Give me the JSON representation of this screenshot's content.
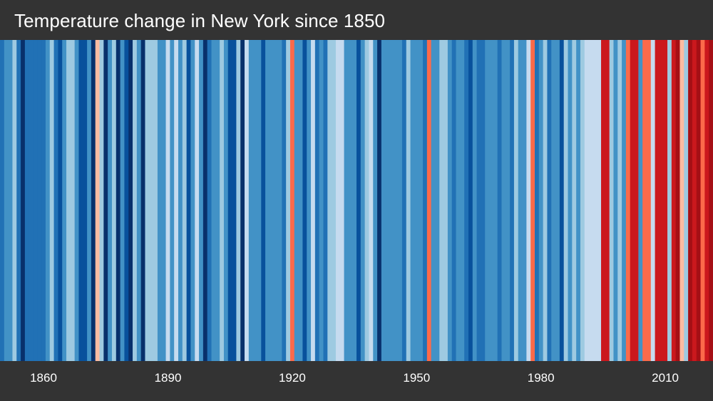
{
  "chart_data": {
    "type": "heatmap",
    "title": "Temperature change in New York since 1850",
    "xlabel": "",
    "ylabel": "",
    "x_range": [
      1850,
      2021
    ],
    "x_tick_labels": [
      "1860",
      "1890",
      "1920",
      "1950",
      "1980",
      "2010"
    ],
    "x_tick_values": [
      1860,
      1890,
      1920,
      1950,
      1980,
      2010
    ],
    "years": [
      1850,
      1851,
      1852,
      1853,
      1854,
      1855,
      1856,
      1857,
      1858,
      1859,
      1860,
      1861,
      1862,
      1863,
      1864,
      1865,
      1866,
      1867,
      1868,
      1869,
      1870,
      1871,
      1872,
      1873,
      1874,
      1875,
      1876,
      1877,
      1878,
      1879,
      1880,
      1881,
      1882,
      1883,
      1884,
      1885,
      1886,
      1887,
      1888,
      1889,
      1890,
      1891,
      1892,
      1893,
      1894,
      1895,
      1896,
      1897,
      1898,
      1899,
      1900,
      1901,
      1902,
      1903,
      1904,
      1905,
      1906,
      1907,
      1908,
      1909,
      1910,
      1911,
      1912,
      1913,
      1914,
      1915,
      1916,
      1917,
      1918,
      1919,
      1920,
      1921,
      1922,
      1923,
      1924,
      1925,
      1926,
      1927,
      1928,
      1929,
      1930,
      1931,
      1932,
      1933,
      1934,
      1935,
      1936,
      1937,
      1938,
      1939,
      1940,
      1941,
      1942,
      1943,
      1944,
      1945,
      1946,
      1947,
      1948,
      1949,
      1950,
      1951,
      1952,
      1953,
      1954,
      1955,
      1956,
      1957,
      1958,
      1959,
      1960,
      1961,
      1962,
      1963,
      1964,
      1965,
      1966,
      1967,
      1968,
      1969,
      1970,
      1971,
      1972,
      1973,
      1974,
      1975,
      1976,
      1977,
      1978,
      1979,
      1980,
      1981,
      1982,
      1983,
      1984,
      1985,
      1986,
      1987,
      1988,
      1989,
      1990,
      1991,
      1992,
      1993,
      1994,
      1995,
      1996,
      1997,
      1998,
      1999,
      2000,
      2001,
      2002,
      2003,
      2004,
      2005,
      2006,
      2007,
      2008,
      2009,
      2010,
      2011,
      2012,
      2013,
      2014,
      2015,
      2016,
      2017,
      2018,
      2019,
      2020,
      2021
    ],
    "color_levels": [
      -2,
      -1,
      -1,
      0,
      -2,
      -4,
      -2,
      -2,
      -2,
      -2,
      -2,
      -1,
      0,
      -2,
      -3,
      -1,
      0,
      0,
      -1,
      -3,
      -3,
      -1,
      -4,
      2,
      0,
      -4,
      -1,
      0,
      -4,
      -1,
      -3,
      -4,
      0,
      -1,
      -4,
      0,
      0,
      0,
      -1,
      -1,
      1,
      -1,
      1,
      -1,
      0,
      -3,
      -1,
      1,
      -1,
      -4,
      -2,
      -1,
      -1,
      0,
      -1,
      -3,
      -3,
      0,
      -4,
      1,
      -1,
      -1,
      -1,
      -3,
      -1,
      -1,
      -1,
      -1,
      -2,
      0,
      3,
      -1,
      -1,
      -3,
      -1,
      1,
      -2,
      -1,
      -2,
      0,
      0,
      1,
      1,
      -1,
      -1,
      -1,
      -3,
      -1,
      0,
      1,
      -1,
      -4,
      -1,
      -1,
      -1,
      -1,
      -1,
      -2,
      0,
      -1,
      -1,
      -1,
      -2,
      3,
      -1,
      -1,
      0,
      0,
      -1,
      -2,
      -1,
      -1,
      -2,
      -3,
      -1,
      -2,
      -2,
      -1,
      -1,
      -1,
      -2,
      -1,
      -1,
      -2,
      0,
      -1,
      -1,
      1,
      3,
      -2,
      -1,
      0,
      -2,
      -1,
      -1,
      -3,
      0,
      -1,
      0,
      -1,
      0,
      1,
      1,
      1,
      1,
      4,
      4,
      0,
      -1,
      0,
      -1,
      3,
      4,
      4,
      -1,
      3,
      3,
      1,
      4,
      4,
      4,
      0,
      4,
      5,
      2,
      0,
      5,
      4,
      5,
      3,
      4,
      5,
      5,
      4,
      5,
      5,
      6
    ],
    "palette": {
      "-4": "#08306b",
      "-3": "#08519c",
      "-2": "#2171b5",
      "-1": "#4292c6",
      "0": "#6baed6",
      "1": "#c6dbef",
      "2": "#deebf7",
      "3": "#fb6a4a",
      "4": "#de2d26",
      "5": "#a50f15",
      "6": "#67000d"
    },
    "colors": {
      "background": "#333333",
      "text": "#ffffff"
    }
  }
}
